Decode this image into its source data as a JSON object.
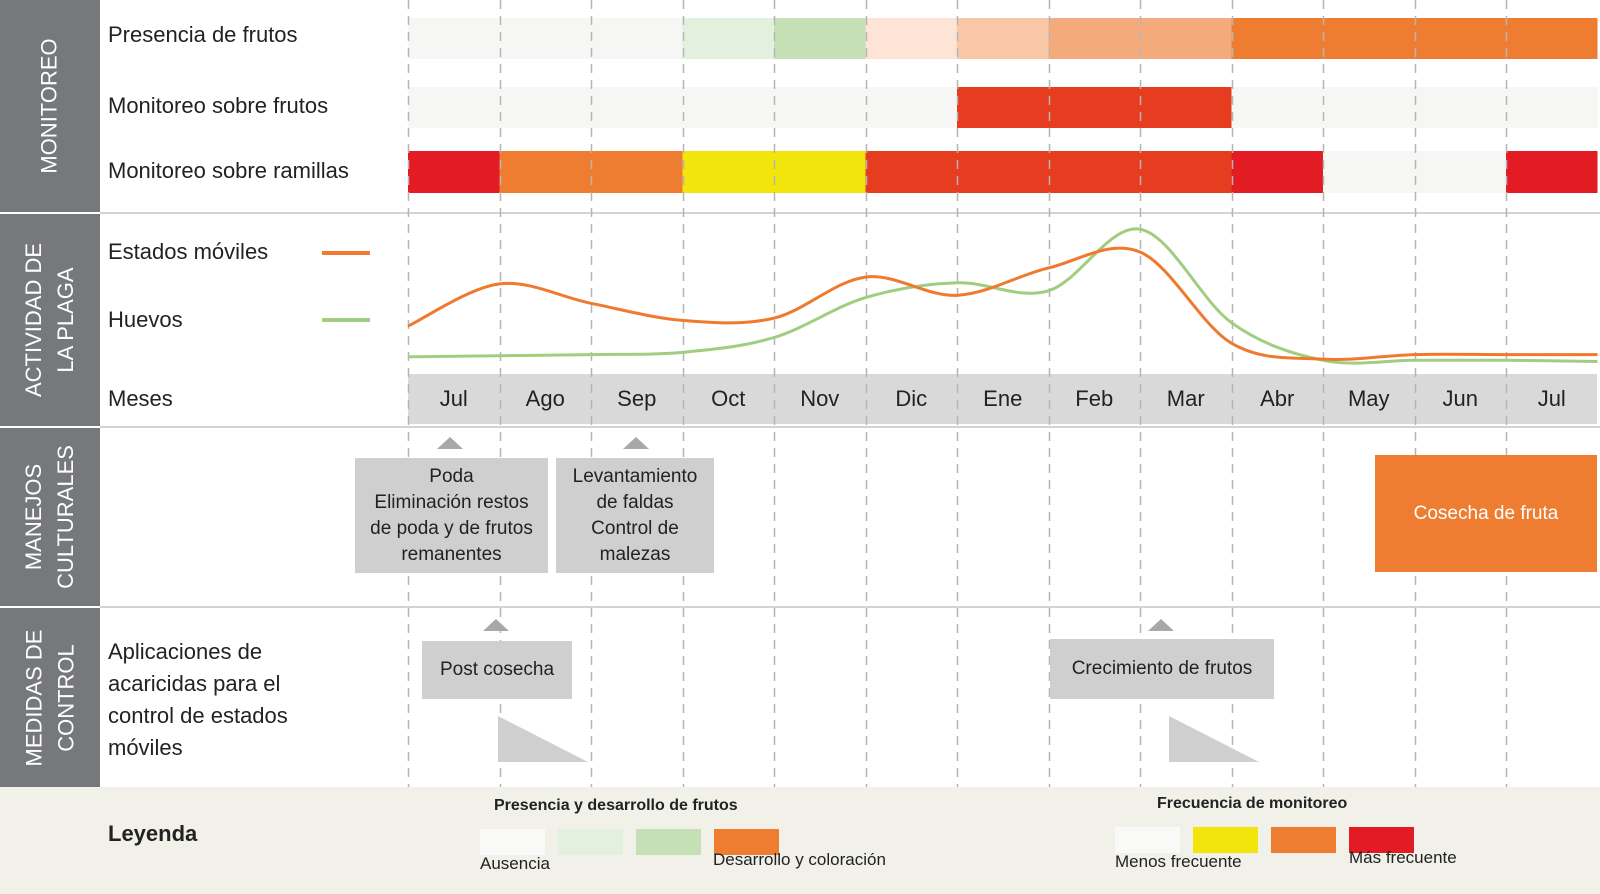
{
  "sections": {
    "monitoreo": "MONITOREO",
    "actividad_line1": "ACTIVIDAD DE",
    "actividad_line2": "LA PLAGA",
    "manejos_line1": "MANEJOS",
    "manejos_line2": "CULTURALES",
    "medidas_line1": "MEDIDAS DE",
    "medidas_line2": "CONTROL"
  },
  "rows": {
    "presencia": "Presencia de frutos",
    "monitoreo_frutos": "Monitoreo sobre frutos",
    "monitoreo_ramillas": "Monitoreo sobre ramillas",
    "estados_moviles": "Estados móviles",
    "huevos": "Huevos",
    "meses": "Meses",
    "aplicaciones": "Aplicaciones de\nacaricidas para el\ncontrol de estados\nmóviles"
  },
  "months": [
    "Jul",
    "Ago",
    "Sep",
    "Oct",
    "Nov",
    "Dic",
    "Ene",
    "Feb",
    "Mar",
    "Abr",
    "May",
    "Jun",
    "Jul"
  ],
  "colors": {
    "ausencia": "#f6f6f4",
    "verde_claro": "#e3f0de",
    "verde": "#c5e0b5",
    "salmon_claro": "#fde4d5",
    "salmon": "#f9c7a6",
    "salmon_medio": "#f4ab7b",
    "naranja": "#ee7d31",
    "rojo_naranja": "#e63c1f",
    "rojo": "#e31b23",
    "amarillo": "#f2e50c",
    "linea_estados": "#ef7a2d",
    "linea_huevos": "#a0cd80"
  },
  "bars": {
    "presencia_frutos": [
      "ausencia",
      "ausencia",
      "ausencia",
      "verde_claro",
      "verde",
      "salmon_claro",
      "salmon",
      "salmon_medio",
      "salmon_medio",
      "naranja",
      "naranja",
      "naranja",
      "naranja"
    ],
    "monitoreo_frutos": [
      "ausencia",
      "ausencia",
      "ausencia",
      "ausencia",
      "ausencia",
      "ausencia",
      "rojo_naranja",
      "rojo_naranja",
      "rojo_naranja",
      "ausencia",
      "ausencia",
      "ausencia",
      "ausencia"
    ],
    "monitoreo_ramillas": [
      "rojo",
      "naranja",
      "naranja",
      "amarillo",
      "amarillo",
      "rojo_naranja",
      "rojo_naranja",
      "rojo_naranja",
      "rojo_naranja",
      "rojo",
      "ausencia",
      "ausencia",
      "rojo"
    ]
  },
  "activity_series": {
    "estados_moviles": [
      0.35,
      0.72,
      0.55,
      0.4,
      0.42,
      0.78,
      0.62,
      0.86,
      1.0,
      0.2,
      0.06,
      0.1,
      0.1,
      0.1
    ],
    "huevos": [
      0.08,
      0.09,
      0.1,
      0.12,
      0.25,
      0.6,
      0.73,
      0.66,
      1.2,
      0.38,
      0.05,
      0.05,
      0.05,
      0.04
    ]
  },
  "manejos": {
    "poda": "Poda\nEliminación restos\nde poda y de frutos\nremanentes",
    "levantamiento": "Levantamiento\nde faldas\nControl de\nmalezas",
    "cosecha": "Cosecha de fruta"
  },
  "control": {
    "post_cosecha": "Post cosecha",
    "crecimiento": "Crecimiento de frutos"
  },
  "legend": {
    "title": "Leyenda",
    "presencia_title": "Presencia y desarrollo de frutos",
    "presencia_swatches": [
      "#f9f9f7",
      "#e3f0de",
      "#c5e0b5",
      "#ee7d31"
    ],
    "ausencia": "Ausencia",
    "desarrollo": "Desarrollo y coloración",
    "frecuencia_title": "Frecuencia de monitoreo",
    "frecuencia_swatches": [
      "#f9f9f7",
      "#f2e50c",
      "#ee7d31",
      "#e31b23"
    ],
    "menos": "Menos frecuente",
    "mas": "Más frecuente"
  }
}
